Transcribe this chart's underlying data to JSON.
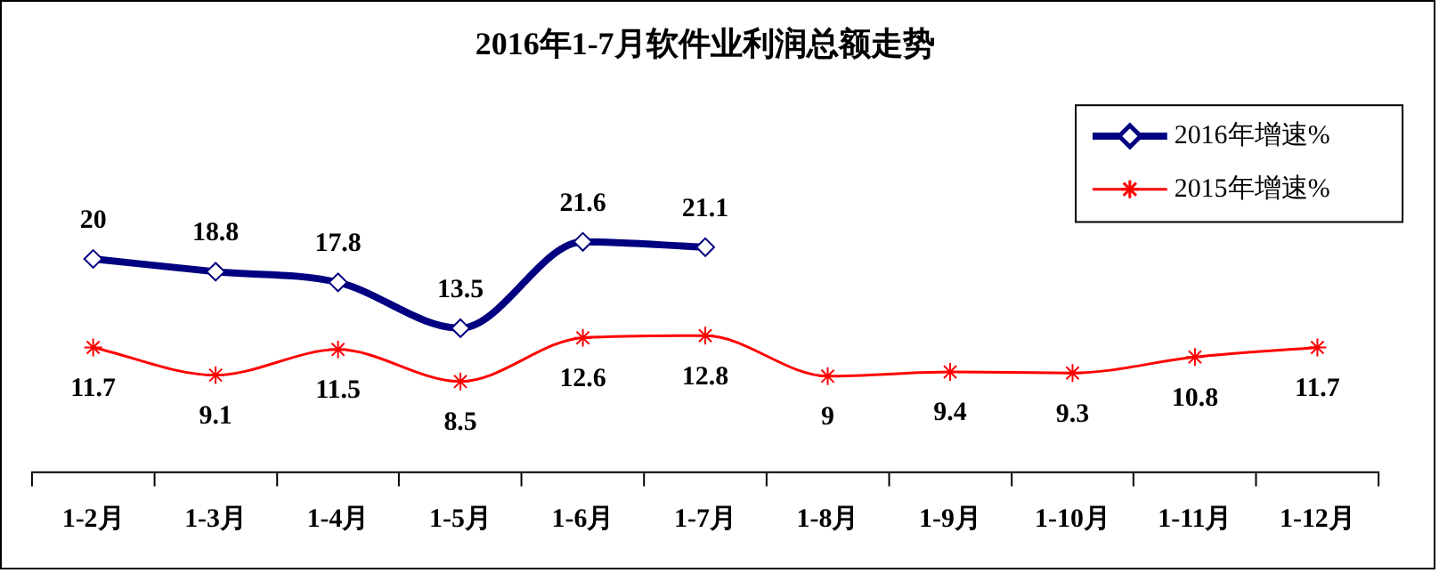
{
  "chart_data": {
    "type": "line",
    "title": "2016年1-7月软件业利润总额走势",
    "categories": [
      "1-2月",
      "1-3月",
      "1-4月",
      "1-5月",
      "1-6月",
      "1-7月",
      "1-8月",
      "1-9月",
      "1-10月",
      "1-11月",
      "1-12月"
    ],
    "series": [
      {
        "name": "2016年增速%",
        "color": "#000080",
        "marker": "diamond",
        "values": [
          20,
          18.8,
          17.8,
          13.5,
          21.6,
          21.1,
          null,
          null,
          null,
          null,
          null
        ]
      },
      {
        "name": "2015年增速%",
        "color": "#ff0000",
        "marker": "cross",
        "values": [
          11.7,
          9.1,
          11.5,
          8.5,
          12.6,
          12.8,
          9,
          9.4,
          9.3,
          10.8,
          11.7
        ]
      }
    ],
    "data_labels": true,
    "grid": false,
    "legend": "top right",
    "tick_labels": "x",
    "line_style": "solid"
  }
}
